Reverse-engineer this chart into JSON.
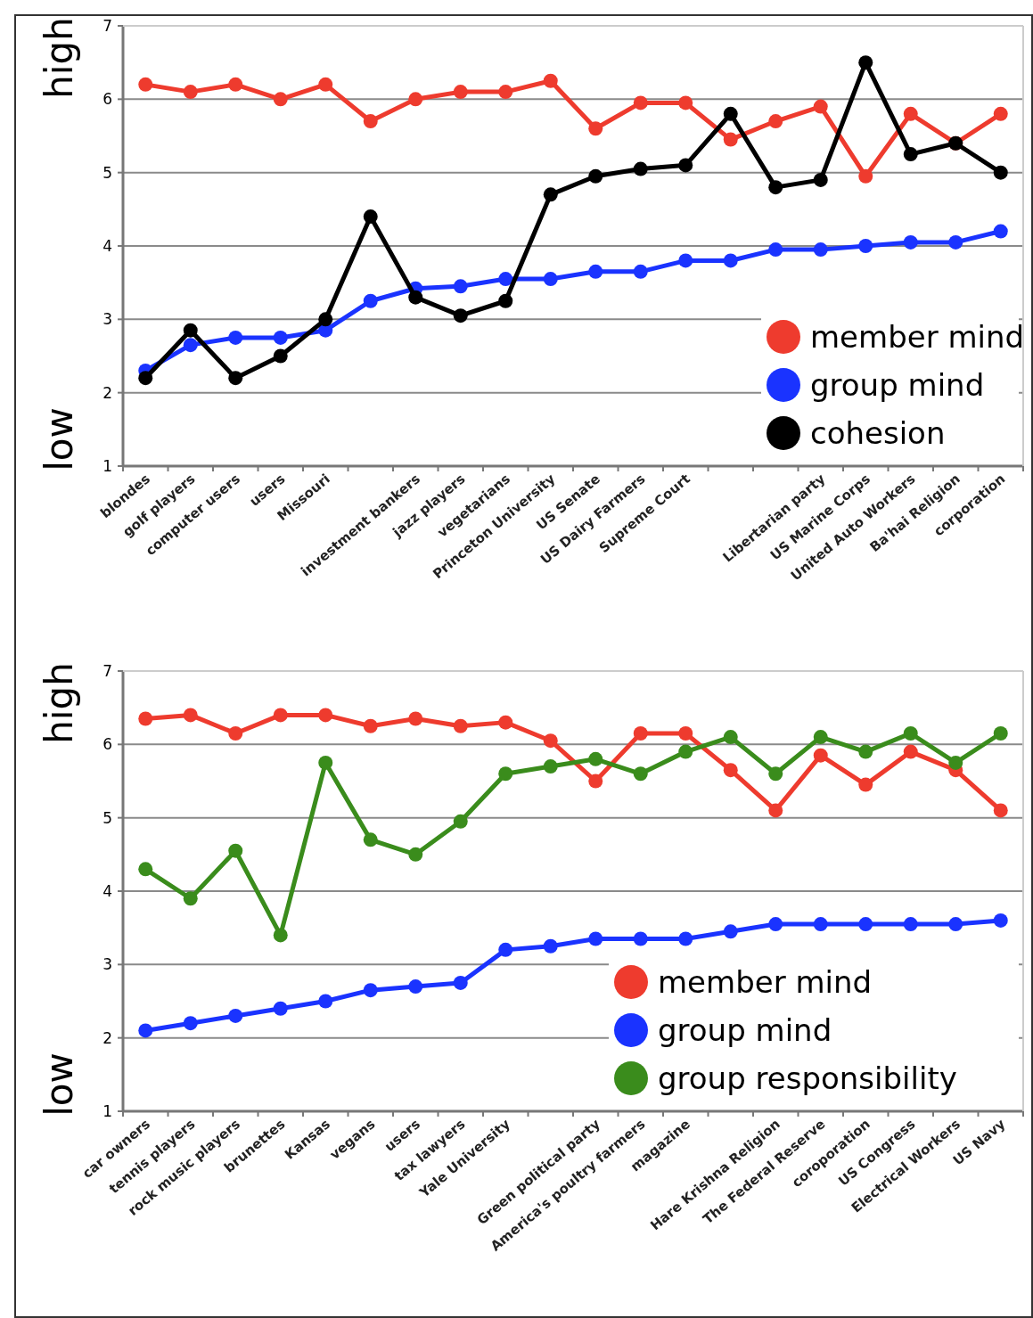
{
  "chart_data": [
    {
      "type": "line",
      "categories": [
        "blondes",
        "golf players",
        "computer users",
        "users",
        "Missouri",
        null,
        "investment bankers",
        "jazz players",
        "vegetarians",
        "Princeton University",
        "US Senate",
        "US Dairy Farmers",
        "Supreme Court",
        null,
        null,
        "Libertarian party",
        "US Marine Corps",
        "United Auto Workers",
        "Ba'hai Religion",
        "corporation"
      ],
      "series": [
        {
          "name": "member mind",
          "color": "#ee3b2e",
          "values": [
            6.2,
            6.1,
            6.2,
            6.0,
            6.2,
            5.7,
            6.0,
            6.1,
            6.1,
            6.25,
            5.6,
            5.95,
            5.95,
            5.45,
            5.7,
            5.9,
            4.95,
            5.8,
            5.4,
            5.8
          ]
        },
        {
          "name": "group mind",
          "color": "#1a33ff",
          "values": [
            2.3,
            2.65,
            2.75,
            2.75,
            2.85,
            3.25,
            3.42,
            3.45,
            3.55,
            3.55,
            3.65,
            3.65,
            3.8,
            3.8,
            3.95,
            3.95,
            4.0,
            4.05,
            4.05,
            4.2
          ]
        },
        {
          "name": "cohesion",
          "color": "#000000",
          "values": [
            2.2,
            2.85,
            2.2,
            2.5,
            3.0,
            4.4,
            3.3,
            3.05,
            3.25,
            4.7,
            4.95,
            5.05,
            5.1,
            5.8,
            4.8,
            4.9,
            6.5,
            5.25,
            5.4,
            5.0
          ]
        }
      ],
      "ylim": [
        1,
        7
      ],
      "yticks": [
        1,
        2,
        3,
        4,
        5,
        6,
        7
      ],
      "grid": "y",
      "legend": "bottom right",
      "marker": "circle",
      "line_style": "solid",
      "annotations": [
        "high",
        "low"
      ]
    },
    {
      "type": "line",
      "categories": [
        "car owners",
        "tennis players",
        "rock music players",
        "brunettes",
        "Kansas",
        "vegans",
        "users",
        "tax lawyers",
        "Yale University",
        null,
        "Green political party",
        "America's poultry farmers",
        "magazine",
        null,
        "Hare Krishna Religion",
        "The Federal Reserve",
        "coroporation",
        "US Congress",
        "Electrical Workers",
        "US Navy"
      ],
      "series": [
        {
          "name": "member mind",
          "color": "#ee3b2e",
          "values": [
            6.35,
            6.4,
            6.15,
            6.4,
            6.4,
            6.25,
            6.35,
            6.25,
            6.3,
            6.05,
            5.5,
            6.15,
            6.15,
            5.65,
            5.1,
            5.85,
            5.45,
            5.9,
            5.65,
            5.1
          ]
        },
        {
          "name": "group mind",
          "color": "#1a33ff",
          "values": [
            2.1,
            2.2,
            2.3,
            2.4,
            2.5,
            2.65,
            2.7,
            2.75,
            3.2,
            3.25,
            3.35,
            3.35,
            3.35,
            3.45,
            3.55,
            3.55,
            3.55,
            3.55,
            3.55,
            3.6
          ]
        },
        {
          "name": "group responsibility",
          "color": "#3a8c1c",
          "values": [
            4.3,
            3.9,
            4.55,
            3.4,
            5.75,
            4.7,
            4.5,
            4.95,
            5.6,
            5.7,
            5.8,
            5.6,
            5.9,
            6.1,
            5.6,
            6.1,
            5.9,
            6.15,
            5.75,
            6.15
          ]
        }
      ],
      "ylim": [
        1,
        7
      ],
      "yticks": [
        1,
        2,
        3,
        4,
        5,
        6,
        7
      ],
      "grid": "y",
      "legend": "bottom right",
      "marker": "circle",
      "line_style": "solid",
      "annotations": [
        "high",
        "low"
      ]
    }
  ]
}
